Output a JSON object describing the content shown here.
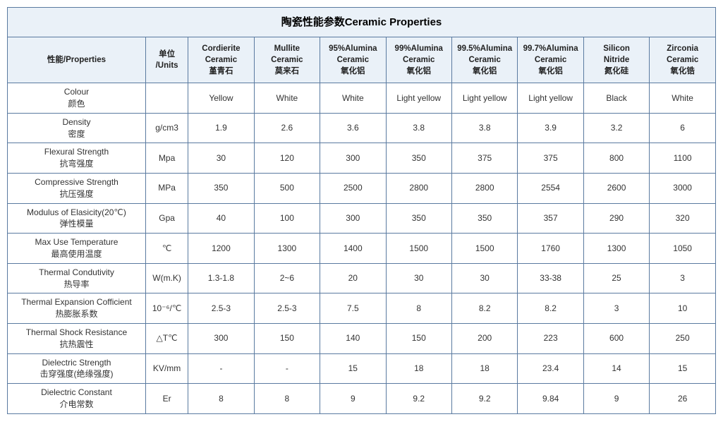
{
  "title": "陶瓷性能参数Ceramic Properties",
  "header": {
    "prop": "性能/Properties",
    "unit": "单位\n/Units",
    "cols": [
      "Cordierite\nCeramic\n堇青石",
      "Mullite\nCeramic\n莫来石",
      "95%Alumina\nCeramic\n氧化铝",
      "99%Alumina\nCeramic\n氧化铝",
      "99.5%Alumina\nCeramic\n氧化铝",
      "99.7%Alumina\nCeramic\n氧化铝",
      "Silicon\nNitride\n氮化硅",
      "Zirconia\nCeramic\n氧化锆"
    ]
  },
  "rows": [
    {
      "prop": "Colour\n颜色",
      "unit": "",
      "cells": [
        "Yellow",
        "White",
        "White",
        "Light yellow",
        "Light yellow",
        "Light yellow",
        "Black",
        "White"
      ]
    },
    {
      "prop": "Density\n密度",
      "unit": "g/cm3",
      "cells": [
        "1.9",
        "2.6",
        "3.6",
        "3.8",
        "3.8",
        "3.9",
        "3.2",
        "6"
      ]
    },
    {
      "prop": "Flexural Strength\n抗弯强度",
      "unit": "Mpa",
      "cells": [
        "30",
        "120",
        "300",
        "350",
        "375",
        "375",
        "800",
        "1100"
      ]
    },
    {
      "prop": "Compressive Strength\n抗压强度",
      "unit": "MPa",
      "cells": [
        "350",
        "500",
        "2500",
        "2800",
        "2800",
        "2554",
        "2600",
        "3000"
      ]
    },
    {
      "prop": "Modulus of Elasicity(20℃)\n弹性模量",
      "unit": "Gpa",
      "cells": [
        "40",
        "100",
        "300",
        "350",
        "350",
        "357",
        "290",
        "320"
      ]
    },
    {
      "prop": "Max Use Temperature\n最高使用温度",
      "unit": "℃",
      "cells": [
        "1200",
        "1300",
        "1400",
        "1500",
        "1500",
        "1760",
        "1300",
        "1050"
      ]
    },
    {
      "prop": "Thermal Condutivity\n热导率",
      "unit": "W(m.K)",
      "cells": [
        "1.3-1.8",
        "2~6",
        "20",
        "30",
        "30",
        "33-38",
        "25",
        "3"
      ]
    },
    {
      "prop": "Thermal Expansion Cofficient\n热膨胀系数",
      "unit": "10⁻⁶/℃",
      "cells": [
        "2.5-3",
        "2.5-3",
        "7.5",
        "8",
        "8.2",
        "8.2",
        "3",
        "10"
      ]
    },
    {
      "prop": "Thermal Shock Resistance\n抗热震性",
      "unit": "△T℃",
      "cells": [
        "300",
        "150",
        "140",
        "150",
        "200",
        "223",
        "600",
        "250"
      ]
    },
    {
      "prop": "Dielectric Strength\n击穿强度(绝缘强度)",
      "unit": "KV/mm",
      "cells": [
        "-",
        "-",
        "15",
        "18",
        "18",
        "23.4",
        "14",
        "15"
      ]
    },
    {
      "prop": "Dielectric Constant\n介电常数",
      "unit": "Er",
      "cells": [
        "8",
        "8",
        "9",
        "9.2",
        "9.2",
        "9.84",
        "9",
        "26"
      ]
    }
  ],
  "style": {
    "border_color": "#5a7aa0",
    "header_bg": "#eaf1f8",
    "title_fontsize": 15,
    "header_fontsize": 11.5,
    "cell_fontsize": 12,
    "text_color": "#333333",
    "background": "#ffffff"
  }
}
